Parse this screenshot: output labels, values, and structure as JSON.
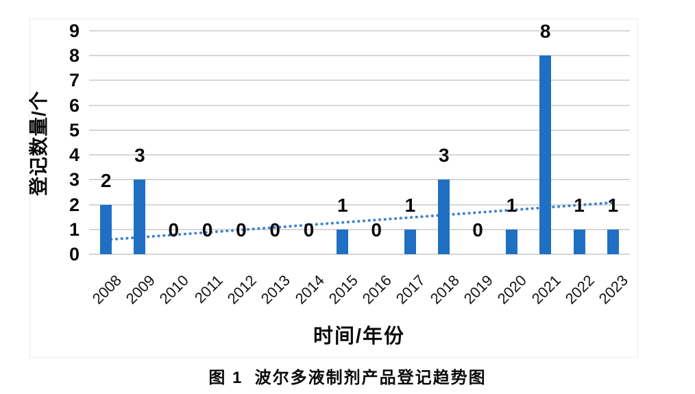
{
  "page": {
    "caption": "图 1  波尔多液制剂产品登记趋势图"
  },
  "chart_data": {
    "type": "bar",
    "title": "",
    "xlabel": "时间/年份",
    "ylabel": "登记数量/个",
    "categories": [
      "2008",
      "2009",
      "2010",
      "2011",
      "2012",
      "2013",
      "2014",
      "2015",
      "2016",
      "2017",
      "2018",
      "2019",
      "2020",
      "2021",
      "2022",
      "2023"
    ],
    "values": [
      2,
      3,
      0,
      0,
      0,
      0,
      0,
      1,
      0,
      1,
      3,
      0,
      1,
      8,
      1,
      1
    ],
    "data_labels": [
      "2",
      "3",
      "0",
      "0",
      "0",
      "0",
      "0",
      "1",
      "0",
      "1",
      "3",
      "0",
      "1",
      "8",
      "1",
      "1"
    ],
    "yticks": [
      "0",
      "1",
      "2",
      "3",
      "4",
      "5",
      "6",
      "7",
      "8",
      "9"
    ],
    "ylim": [
      0,
      9
    ],
    "grid": "horizontal",
    "legend": "none",
    "bar_color": "#1f70c2",
    "gridline_color": "#d6d6d6",
    "trendline": {
      "type": "linear",
      "style": "dotted",
      "color": "#3c82cf",
      "start_value": 0.58,
      "end_value": 2.08
    }
  }
}
